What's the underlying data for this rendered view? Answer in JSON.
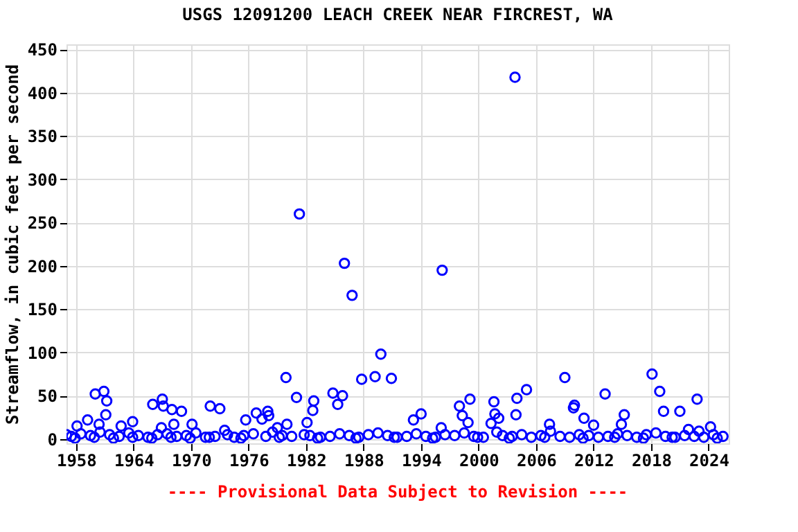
{
  "chart_data": {
    "type": "scatter",
    "title": "USGS 12091200 LEACH CREEK NEAR FIRCREST, WA",
    "ylabel": "Streamflow, in cubic feet per second",
    "annotations": [
      "---- Provisional Data Subject to Revision ----"
    ],
    "xlim": [
      1957.0,
      2026.1
    ],
    "xticks": [
      1958,
      1964,
      1970,
      1976,
      1982,
      1988,
      1994,
      2000,
      2006,
      2012,
      2018,
      2024
    ],
    "ylim": [
      -5,
      456
    ],
    "yticks": [
      0,
      50,
      100,
      150,
      200,
      250,
      300,
      350,
      400,
      450
    ],
    "grid": true,
    "marker": "circle",
    "legend": false,
    "series": [
      {
        "color": "#0000ff",
        "x": [
          1957.0,
          1958.1,
          1959.2,
          1960.0,
          1960.4,
          1960.9,
          1961.1,
          1961.2,
          1962.7,
          1963.9,
          1966.0,
          1966.9,
          1967.0,
          1967.1,
          1968.0,
          1968.2,
          1969.0,
          1970.1,
          1972.0,
          1973.0,
          1973.5,
          1975.7,
          1976.8,
          1977.4,
          1978.0,
          1978.1,
          1979.0,
          1979.9,
          1980.0,
          1981.0,
          1981.3,
          1982.1,
          1982.7,
          1982.8,
          1984.8,
          1985.3,
          1985.8,
          1986.0,
          1986.8,
          1987.8,
          1989.2,
          1989.8,
          1990.9,
          1993.2,
          1994.0,
          1996.1,
          1996.2,
          1998.0,
          1998.3,
          1998.9,
          1999.1,
          2001.3,
          2001.6,
          2001.7,
          2002.1,
          2003.8,
          2003.9,
          2004.0,
          2005.0,
          2007.4,
          2009.0,
          2009.9,
          2010.0,
          2011.0,
          2012.0,
          2013.2,
          2014.9,
          2015.2,
          2018.1,
          2018.9,
          2019.3,
          2021.0,
          2021.9,
          2022.8,
          2023.0,
          2024.2,
          1957.5,
          1958.5,
          1959.5,
          1960.5,
          1961.5,
          1962.5,
          1963.5,
          1964.5,
          1965.5,
          1966.5,
          1967.5,
          1968.5,
          1969.5,
          1970.5,
          1971.5,
          1972.5,
          1973.8,
          1974.5,
          1975.5,
          1976.5,
          1977.8,
          1978.5,
          1979.5,
          1980.5,
          1981.8,
          1982.4,
          1983.5,
          1984.5,
          1985.5,
          1986.5,
          1987.5,
          1988.5,
          1989.5,
          1990.5,
          1991.5,
          1992.5,
          1993.5,
          1994.5,
          1995.5,
          1996.5,
          1997.5,
          1998.5,
          1999.5,
          2000.5,
          2001.9,
          2002.5,
          2003.5,
          2004.5,
          2005.5,
          2006.5,
          2007.5,
          2008.5,
          2009.5,
          2010.5,
          2011.5,
          2012.5,
          2013.5,
          2014.5,
          2015.5,
          2016.5,
          2017.5,
          2018.5,
          2019.5,
          2020.5,
          2021.5,
          2022.5,
          2023.5,
          2024.5,
          2025.5,
          1957.9,
          1959.9,
          1961.9,
          1963.9,
          1965.9,
          1967.9,
          1969.9,
          1971.9,
          1975.2,
          1979.2,
          1983.2,
          1987.2,
          1991.2,
          1995.2,
          1999.9,
          2003.2,
          2006.9,
          2010.9,
          2014.2,
          2017.2,
          2020.2,
          2024.9
        ],
        "values": [
          5,
          15,
          22,
          52,
          17,
          55,
          28,
          44,
          15,
          20,
          40,
          13,
          46,
          38,
          34,
          17,
          32,
          17,
          38,
          35,
          10,
          22,
          30,
          23,
          32,
          27,
          13,
          71,
          17,
          48,
          260,
          19,
          33,
          44,
          53,
          40,
          50,
          203,
          166,
          69,
          72,
          98,
          70,
          22,
          29,
          13,
          195,
          38,
          27,
          19,
          46,
          18,
          43,
          29,
          24,
          418,
          28,
          47,
          57,
          17,
          71,
          36,
          39,
          24,
          16,
          52,
          17,
          28,
          75,
          55,
          32,
          32,
          11,
          46,
          9,
          14,
          3,
          6,
          4,
          8,
          5,
          3,
          7,
          4,
          2,
          5,
          6,
          3,
          4,
          7,
          2,
          3,
          5,
          2,
          4,
          6,
          3,
          8,
          4,
          3,
          5,
          4,
          2,
          3,
          6,
          4,
          2,
          5,
          7,
          4,
          2,
          3,
          6,
          3,
          2,
          5,
          4,
          7,
          3,
          2,
          8,
          4,
          3,
          5,
          2,
          4,
          9,
          3,
          2,
          5,
          4,
          2,
          3,
          6,
          4,
          2,
          5,
          7,
          3,
          2,
          4,
          3,
          2,
          5,
          3,
          1,
          2,
          1,
          2,
          1,
          2,
          1,
          2,
          1,
          2,
          1,
          1,
          2,
          1,
          2,
          1,
          2,
          1,
          2,
          1,
          2,
          1
        ]
      }
    ]
  }
}
